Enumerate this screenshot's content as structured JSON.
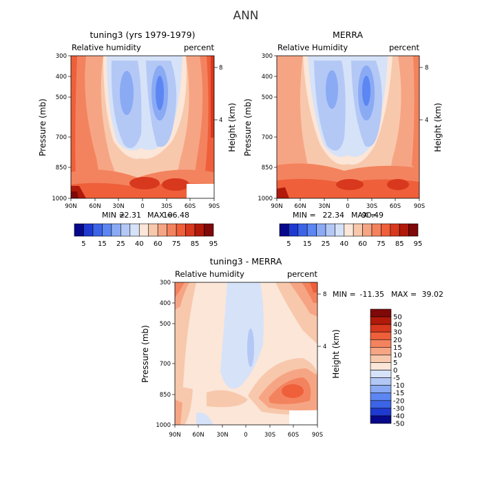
{
  "figure": {
    "title": "ANN",
    "variable_label": "Relative humidity",
    "variable_label_alt": "Relative Humidity",
    "units": "percent"
  },
  "chart_data": [
    {
      "type": "heatmap",
      "title": "tuning3 (yrs 1979-1979)",
      "subtitle_left": "Relative humidity",
      "subtitle_right": "percent",
      "xlabel": "",
      "ylabel": "Pressure (mb)",
      "ylabel_right": "Height (km)",
      "x_ticks": [
        "90N",
        "60N",
        "30N",
        "0",
        "30S",
        "60S",
        "90S"
      ],
      "y_ticks": [
        "300",
        "400",
        "500",
        "700",
        "850",
        "1000"
      ],
      "y_right_ticks": [
        "8",
        "4"
      ],
      "y_scale": "log",
      "ylim": [
        1000,
        300
      ],
      "min_label": "MIN =",
      "min": "22.31",
      "max_label": "MAX =",
      "max": "106.48",
      "colorbar": {
        "orientation": "horizontal",
        "labels": [
          "5",
          "15",
          "25",
          "40",
          "60",
          "75",
          "85",
          "95"
        ]
      }
    },
    {
      "type": "heatmap",
      "title": "MERRA",
      "subtitle_left": "Relative Humidity",
      "subtitle_right": "percent",
      "xlabel": "",
      "ylabel": "Pressure (mb)",
      "ylabel_right": "Height (km)",
      "x_ticks": [
        "90N",
        "60N",
        "30N",
        "0",
        "30S",
        "60S",
        "90S"
      ],
      "y_ticks": [
        "300",
        "400",
        "500",
        "700",
        "850",
        "1000"
      ],
      "y_right_ticks": [
        "8",
        "4"
      ],
      "y_scale": "log",
      "ylim": [
        1000,
        300
      ],
      "min_label": "MIN =",
      "min": "22.34",
      "max_label": "MAX =",
      "max": "90.49",
      "colorbar": {
        "orientation": "horizontal",
        "labels": [
          "5",
          "15",
          "25",
          "40",
          "60",
          "75",
          "85",
          "95"
        ]
      }
    },
    {
      "type": "heatmap",
      "title": "tuning3 - MERRA",
      "subtitle_left": "Relative humidity",
      "subtitle_right": "percent",
      "xlabel": "",
      "ylabel": "Pressure (mb)",
      "ylabel_right": "Height (km)",
      "x_ticks": [
        "90N",
        "60N",
        "30N",
        "0",
        "30S",
        "60S",
        "90S"
      ],
      "y_ticks": [
        "300",
        "400",
        "500",
        "700",
        "850",
        "1000"
      ],
      "y_right_ticks": [
        "8",
        "4"
      ],
      "y_scale": "log",
      "ylim": [
        1000,
        300
      ],
      "min_label": "MIN =",
      "min": "-11.35",
      "max_label": "MAX =",
      "max": "39.02",
      "colorbar": {
        "orientation": "vertical",
        "labels": [
          "50",
          "40",
          "30",
          "20",
          "15",
          "10",
          "5",
          "0",
          "-5",
          "-10",
          "-15",
          "-20",
          "-30",
          "-40",
          "-50"
        ]
      }
    }
  ],
  "colors": {
    "abs_scale": [
      "#08088a",
      "#1f3ad1",
      "#3c64e6",
      "#5c86f2",
      "#8aaaf4",
      "#b4c8f6",
      "#d6e2f8",
      "#fbe6d8",
      "#f8c8ac",
      "#f6a584",
      "#f3835e",
      "#ee5f3a",
      "#d8381d",
      "#b11a0a",
      "#7f0808"
    ],
    "diff_scale": [
      "#7f0808",
      "#b11a0a",
      "#d8381d",
      "#ee5f3a",
      "#f3835e",
      "#f6a584",
      "#f8c8ac",
      "#fbe6d8",
      "#d6e2f8",
      "#b4c8f6",
      "#8aaaf4",
      "#5c86f2",
      "#3c64e6",
      "#1f3ad1",
      "#08088a"
    ]
  }
}
